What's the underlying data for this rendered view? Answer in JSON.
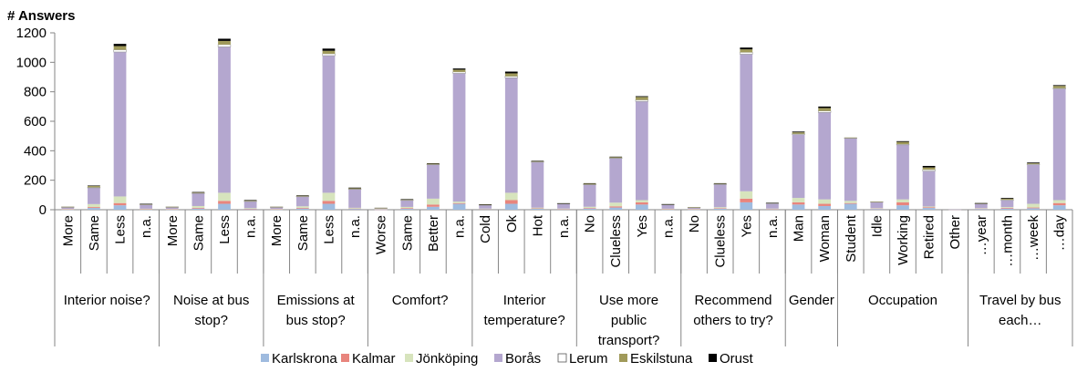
{
  "chart_data": {
    "type": "bar",
    "stacked": true,
    "ylabel": "# Answers",
    "ylim": [
      0,
      1200
    ],
    "yticks": [
      0,
      200,
      400,
      600,
      800,
      1000,
      1200
    ],
    "grid": false,
    "legend_position": "bottom",
    "series_names": [
      "Karlskrona",
      "Kalmar",
      "Jönköping",
      "Borås",
      "Lerum",
      "Eskilstuna",
      "Orust"
    ],
    "colors": [
      "#9fbbdf",
      "#e8857d",
      "#d7e4bd",
      "#b4a7cf",
      "#ffffff",
      "#a09a5a",
      "#000000"
    ],
    "groups": [
      {
        "label": [
          "Interior noise?"
        ],
        "categories": [
          "More",
          "Same",
          "Less",
          "n.a."
        ],
        "values": [
          [
            2,
            1,
            2,
            12,
            2,
            1,
            0
          ],
          [
            12,
            6,
            20,
            110,
            4,
            10,
            2
          ],
          [
            30,
            15,
            45,
            980,
            15,
            25,
            15
          ],
          [
            2,
            2,
            3,
            28,
            2,
            1,
            2
          ]
        ]
      },
      {
        "label": [
          "Noise at bus",
          "stop?"
        ],
        "categories": [
          "More",
          "Same",
          "Less",
          "n.a."
        ],
        "values": [
          [
            2,
            1,
            2,
            12,
            2,
            1,
            0
          ],
          [
            8,
            5,
            12,
            85,
            4,
            4,
            2
          ],
          [
            40,
            20,
            55,
            990,
            15,
            25,
            15
          ],
          [
            4,
            2,
            5,
            45,
            3,
            5,
            2
          ]
        ]
      },
      {
        "label": [
          "Emissions at",
          "bus stop?"
        ],
        "categories": [
          "More",
          "Same",
          "Less",
          "n.a."
        ],
        "values": [
          [
            2,
            1,
            2,
            12,
            2,
            1,
            0
          ],
          [
            8,
            5,
            10,
            65,
            3,
            4,
            3
          ],
          [
            40,
            20,
            55,
            930,
            13,
            20,
            15
          ],
          [
            6,
            2,
            5,
            125,
            3,
            5,
            4
          ]
        ]
      },
      {
        "label": [
          "Comfort?"
        ],
        "categories": [
          "Worse",
          "Same",
          "Better",
          "n.a."
        ],
        "values": [
          [
            1,
            1,
            2,
            7,
            1,
            1,
            0
          ],
          [
            6,
            5,
            8,
            45,
            2,
            4,
            2
          ],
          [
            20,
            15,
            40,
            230,
            3,
            5,
            2
          ],
          [
            40,
            5,
            10,
            870,
            10,
            15,
            8
          ]
        ]
      },
      {
        "label": [
          "Interior",
          "temperature?"
        ],
        "categories": [
          "Cold",
          "Ok",
          "Hot",
          "n.a."
        ],
        "values": [
          [
            4,
            2,
            2,
            22,
            3,
            2,
            2
          ],
          [
            40,
            25,
            50,
            780,
            10,
            20,
            12
          ],
          [
            6,
            3,
            5,
            310,
            2,
            4,
            2
          ],
          [
            3,
            2,
            3,
            33,
            1,
            1,
            1
          ]
        ]
      },
      {
        "label": [
          "Use more",
          "public",
          "transport?"
        ],
        "categories": [
          "No",
          "Clueless",
          "Yes",
          "n.a."
        ],
        "values": [
          [
            8,
            4,
            8,
            150,
            2,
            5,
            3
          ],
          [
            15,
            8,
            25,
            300,
            4,
            5,
            3
          ],
          [
            35,
            15,
            15,
            670,
            10,
            20,
            5
          ],
          [
            2,
            2,
            3,
            28,
            1,
            1,
            1
          ]
        ]
      },
      {
        "label": [
          "Recommend",
          "others to try?"
        ],
        "categories": [
          "No",
          "Clueless",
          "Yes",
          "n.a."
        ],
        "values": [
          [
            2,
            1,
            2,
            10,
            1,
            1,
            0
          ],
          [
            7,
            4,
            6,
            155,
            2,
            3,
            3
          ],
          [
            50,
            25,
            50,
            930,
            13,
            20,
            12
          ],
          [
            3,
            2,
            3,
            35,
            1,
            2,
            1
          ]
        ]
      },
      {
        "label": [
          "Gender"
        ],
        "categories": [
          "Man",
          "Woman"
        ],
        "values": [
          [
            35,
            15,
            30,
            430,
            5,
            10,
            5
          ],
          [
            25,
            15,
            30,
            590,
            10,
            20,
            10
          ]
        ]
      },
      {
        "label": [
          "Occupation"
        ],
        "categories": [
          "Student",
          "Idle",
          "Working",
          "Retired",
          "Other"
        ],
        "values": [
          [
            40,
            5,
            15,
            425,
            2,
            3,
            0
          ],
          [
            5,
            3,
            3,
            42,
            1,
            1,
            0
          ],
          [
            30,
            20,
            20,
            370,
            5,
            15,
            5
          ],
          [
            12,
            5,
            5,
            240,
            10,
            15,
            10
          ],
          [
            1,
            1,
            1,
            2,
            0,
            0,
            0
          ]
        ]
      },
      {
        "label": [
          "Travel by bus",
          "each…"
        ],
        "categories": [
          "…year",
          "…month",
          "…week",
          "…day"
        ],
        "values": [
          [
            5,
            3,
            3,
            30,
            1,
            2,
            1
          ],
          [
            8,
            5,
            5,
            45,
            5,
            7,
            5
          ],
          [
            10,
            5,
            25,
            265,
            5,
            5,
            5
          ],
          [
            30,
            15,
            20,
            755,
            5,
            15,
            5
          ]
        ]
      }
    ]
  }
}
